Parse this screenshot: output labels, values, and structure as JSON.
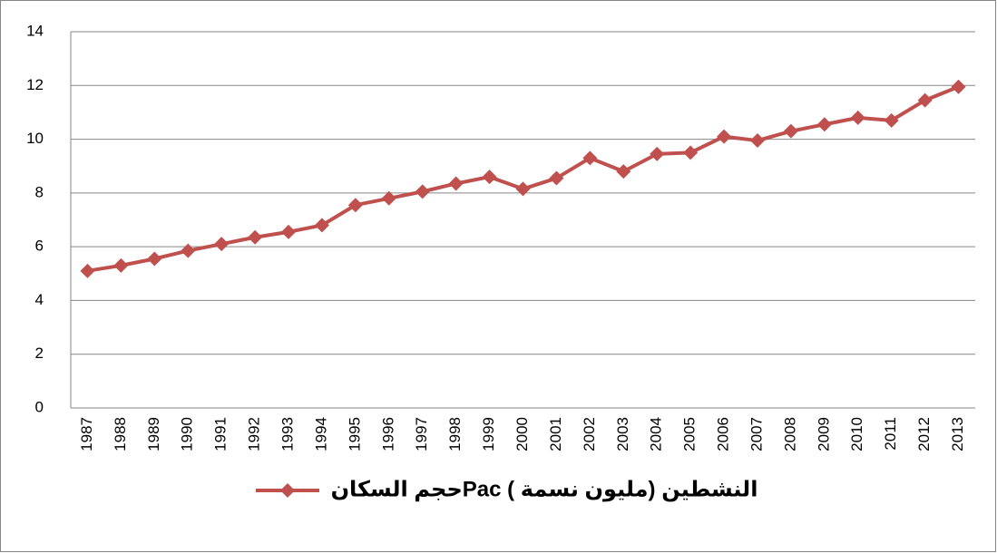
{
  "chart_data": {
    "type": "line",
    "categories": [
      "1987",
      "1988",
      "1989",
      "1990",
      "1991",
      "1992",
      "1993",
      "1994",
      "1995",
      "1996",
      "1997",
      "1998",
      "1999",
      "2000",
      "2001",
      "2002",
      "2003",
      "2004",
      "2005",
      "2006",
      "2007",
      "2008",
      "2009",
      "2010",
      "2011",
      "2012",
      "2013"
    ],
    "series": [
      {
        "name": "حجم السكانPac النشطين (مليون نسمة )",
        "color": "#c0504d",
        "values": [
          5.1,
          5.3,
          5.55,
          5.85,
          6.1,
          6.35,
          6.55,
          6.8,
          7.55,
          7.8,
          8.05,
          8.35,
          8.6,
          8.15,
          8.55,
          9.3,
          8.8,
          9.45,
          9.5,
          10.1,
          9.95,
          10.3,
          10.55,
          10.8,
          10.7,
          11.45,
          11.95
        ]
      }
    ],
    "ylim": [
      0,
      14
    ],
    "yticks": [
      0,
      2,
      4,
      6,
      8,
      10,
      12,
      14
    ],
    "grid": true,
    "legend": "bottom"
  }
}
